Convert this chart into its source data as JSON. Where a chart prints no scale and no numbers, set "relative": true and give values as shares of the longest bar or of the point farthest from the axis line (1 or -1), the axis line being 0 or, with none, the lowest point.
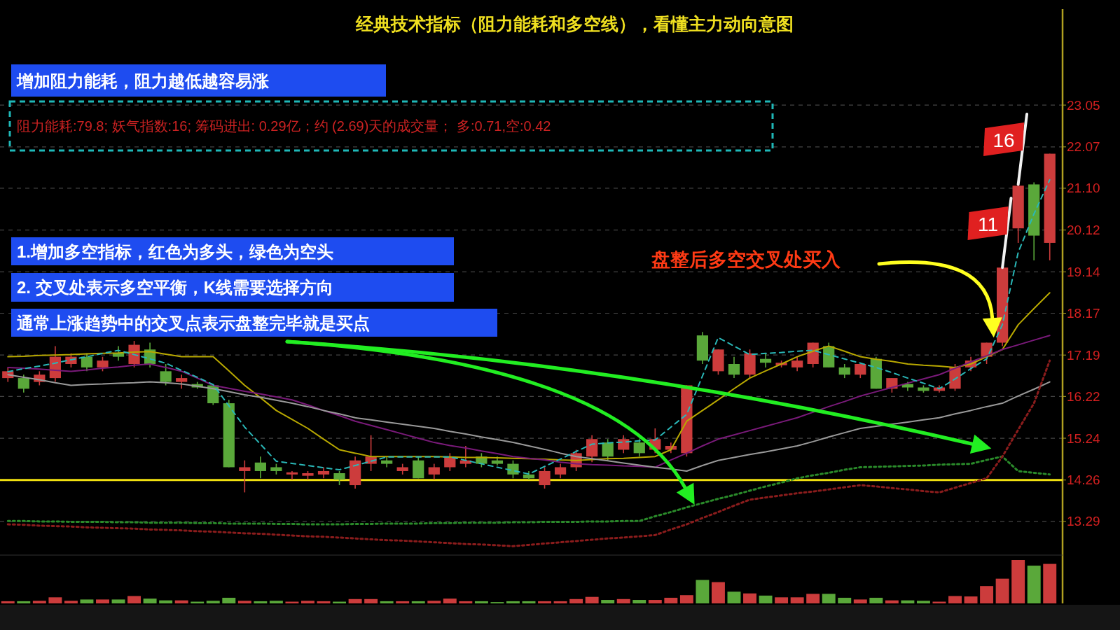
{
  "chart_data": [
    {
      "type": "candlestick",
      "title": "经典技术指标（阻力能耗和多空线），看懂主力动向意图",
      "categories": [
        null,
        null,
        null,
        null,
        null,
        null,
        null,
        null,
        null,
        null,
        null,
        null,
        null,
        null,
        null,
        null,
        null,
        null,
        null,
        null,
        null,
        null,
        null,
        null,
        null,
        null,
        null,
        null,
        null,
        null,
        null,
        null,
        null,
        null,
        null,
        null,
        null,
        null,
        null,
        null,
        null,
        null,
        null,
        null,
        null,
        null,
        null,
        null,
        null,
        null,
        null,
        null,
        null,
        null,
        null,
        null,
        null,
        null,
        null,
        null,
        null,
        null,
        null,
        null,
        null,
        null,
        null
      ],
      "ohlc": [
        [
          16.65,
          16.9,
          16.56,
          16.81
        ],
        [
          16.65,
          16.73,
          16.31,
          16.4
        ],
        [
          16.56,
          16.81,
          16.48,
          16.73
        ],
        [
          16.65,
          17.4,
          16.56,
          17.15
        ],
        [
          16.98,
          17.23,
          16.9,
          17.15
        ],
        [
          17.15,
          17.23,
          16.81,
          16.9
        ],
        [
          16.9,
          17.15,
          16.81,
          17.06
        ],
        [
          17.23,
          17.4,
          17.06,
          17.15
        ],
        [
          16.98,
          17.52,
          16.9,
          17.43
        ],
        [
          17.32,
          17.48,
          16.9,
          16.98
        ],
        [
          16.81,
          16.98,
          16.48,
          16.56
        ],
        [
          16.56,
          16.73,
          16.4,
          16.65
        ],
        [
          16.51,
          16.56,
          16.4,
          16.43
        ],
        [
          16.48,
          16.51,
          16.02,
          16.06
        ],
        [
          16.06,
          16.14,
          14.56,
          14.56
        ],
        [
          14.47,
          14.72,
          13.97,
          14.56
        ],
        [
          14.67,
          14.81,
          14.3,
          14.47
        ],
        [
          14.56,
          14.64,
          14.39,
          14.47
        ],
        [
          14.39,
          14.47,
          14.27,
          14.44
        ],
        [
          14.36,
          14.47,
          14.27,
          14.42
        ],
        [
          14.39,
          14.56,
          14.3,
          14.47
        ],
        [
          14.42,
          14.47,
          14.14,
          14.27
        ],
        [
          14.14,
          14.81,
          14.06,
          14.72
        ],
        [
          14.64,
          15.31,
          14.47,
          14.81
        ],
        [
          14.72,
          14.81,
          14.56,
          14.64
        ],
        [
          14.47,
          14.64,
          14.39,
          14.56
        ],
        [
          14.72,
          14.81,
          14.3,
          14.3
        ],
        [
          14.39,
          14.64,
          14.27,
          14.56
        ],
        [
          14.56,
          14.89,
          14.47,
          14.81
        ],
        [
          14.64,
          15.06,
          14.56,
          14.72
        ],
        [
          14.81,
          14.89,
          14.56,
          14.64
        ],
        [
          14.72,
          14.81,
          14.6,
          14.64
        ],
        [
          14.64,
          14.72,
          14.3,
          14.39
        ],
        [
          14.39,
          14.47,
          14.27,
          14.3
        ],
        [
          14.14,
          14.56,
          14.06,
          14.47
        ],
        [
          14.39,
          14.64,
          14.3,
          14.56
        ],
        [
          14.56,
          14.97,
          14.47,
          14.89
        ],
        [
          14.81,
          15.31,
          14.68,
          15.22
        ],
        [
          15.14,
          15.22,
          14.72,
          14.81
        ],
        [
          14.97,
          15.31,
          14.89,
          15.22
        ],
        [
          15.14,
          15.22,
          14.81,
          14.89
        ],
        [
          14.97,
          15.47,
          14.89,
          15.22
        ],
        [
          14.97,
          15.14,
          14.89,
          15.06
        ],
        [
          14.89,
          16.48,
          14.81,
          16.48
        ],
        [
          17.65,
          17.73,
          16.98,
          17.06
        ],
        [
          16.81,
          17.32,
          16.73,
          17.32
        ],
        [
          16.98,
          17.15,
          16.65,
          16.73
        ],
        [
          16.73,
          17.32,
          16.65,
          17.23
        ],
        [
          17.1,
          17.23,
          16.9,
          17.01
        ],
        [
          16.95,
          17.06,
          16.9,
          17.01
        ],
        [
          16.9,
          17.15,
          16.81,
          17.06
        ],
        [
          16.98,
          17.48,
          16.9,
          17.48
        ],
        [
          17.4,
          17.48,
          16.9,
          16.9
        ],
        [
          16.9,
          16.98,
          16.65,
          16.73
        ],
        [
          16.73,
          16.98,
          16.65,
          16.98
        ],
        [
          17.1,
          17.15,
          16.4,
          16.4
        ],
        [
          16.4,
          16.65,
          16.31,
          16.65
        ],
        [
          16.51,
          16.56,
          16.35,
          16.43
        ],
        [
          16.43,
          16.48,
          16.31,
          16.35
        ],
        [
          16.35,
          16.48,
          16.31,
          16.43
        ],
        [
          16.4,
          16.98,
          16.35,
          16.9
        ],
        [
          16.9,
          17.15,
          16.81,
          17.06
        ],
        [
          17.15,
          17.48,
          16.98,
          17.48
        ],
        [
          17.48,
          19.24,
          17.4,
          19.24
        ],
        [
          20.16,
          21.19,
          19.82,
          21.16
        ],
        [
          21.19,
          21.24,
          19.41,
          19.99
        ],
        [
          19.82,
          21.91,
          19.41,
          21.91
        ]
      ],
      "colors": [
        "#cc3c3c",
        "#5aa83a",
        "#cc3c3c",
        "#cc3c3c",
        "#cc3c3c",
        "#5aa83a",
        "#cc3c3c",
        "#5aa83a",
        "#cc3c3c",
        "#5aa83a",
        "#5aa83a",
        "#cc3c3c",
        "#5aa83a",
        "#5aa83a",
        "#5aa83a",
        "#cc3c3c",
        "#5aa83a",
        "#5aa83a",
        "#cc3c3c",
        "#cc3c3c",
        "#cc3c3c",
        "#5aa83a",
        "#cc3c3c",
        "#cc3c3c",
        "#5aa83a",
        "#cc3c3c",
        "#5aa83a",
        "#cc3c3c",
        "#cc3c3c",
        "#cc3c3c",
        "#5aa83a",
        "#5aa83a",
        "#5aa83a",
        "#5aa83a",
        "#cc3c3c",
        "#cc3c3c",
        "#cc3c3c",
        "#cc3c3c",
        "#5aa83a",
        "#cc3c3c",
        "#5aa83a",
        "#cc3c3c",
        "#cc3c3c",
        "#cc3c3c",
        "#5aa83a",
        "#cc3c3c",
        "#5aa83a",
        "#cc3c3c",
        "#5aa83a",
        "#cc3c3c",
        "#cc3c3c",
        "#cc3c3c",
        "#5aa83a",
        "#5aa83a",
        "#cc3c3c",
        "#5aa83a",
        "#cc3c3c",
        "#5aa83a",
        "#5aa83a",
        "#cc3c3c",
        "#cc3c3c",
        "#cc3c3c",
        "#cc3c3c",
        "#cc3c3c",
        "#cc3c3c",
        "#5aa83a",
        "#cc3c3c"
      ],
      "ylim": [
        12.5,
        25.3
      ],
      "yticks": [
        23.05,
        22.07,
        {
          "value": 21.1,
          "label": "21.10"
        },
        20.12,
        19.14,
        18.17,
        17.19,
        16.22,
        15.24,
        14.26,
        13.29
      ],
      "grid": "y",
      "ref_lines": [
        {
          "axis": "y",
          "value": 14.26,
          "color": "#f0e010"
        }
      ],
      "series": [
        {
          "type": "line",
          "color": "#b8a800",
          "values": [
            17.15,
            17.16,
            17.18,
            17.19,
            17.2,
            17.22,
            17.23,
            17.24,
            17.26,
            17.27,
            17.21,
            17.15,
            17.15,
            17.15,
            16.82,
            16.48,
            16.19,
            15.89,
            15.68,
            15.47,
            15.22,
            14.97,
            14.89,
            14.81,
            14.81,
            14.81,
            14.81,
            14.81,
            14.8,
            14.79,
            14.79,
            14.78,
            14.77,
            14.76,
            14.75,
            14.73,
            14.72,
            14.74,
            14.76,
            14.77,
            14.79,
            14.81,
            14.97,
            15.64,
            15.89,
            16.14,
            16.4,
            16.65,
            16.82,
            16.98,
            17.15,
            17.28,
            17.4,
            17.28,
            17.15,
            17.09,
            17.04,
            16.98,
            16.95,
            16.93,
            16.9,
            16.98,
            17.15,
            17.32,
            17.9,
            18.28,
            18.65
          ]
        },
        {
          "type": "line",
          "color": "#7a1a7a",
          "values": [
            16.9,
            16.88,
            16.86,
            16.83,
            16.81,
            16.84,
            16.88,
            16.91,
            16.95,
            16.98,
            16.9,
            16.81,
            16.65,
            16.48,
            16.41,
            16.34,
            16.28,
            16.21,
            16.14,
            16.02,
            15.89,
            15.77,
            15.64,
            15.54,
            15.44,
            15.34,
            15.24,
            15.14,
            15.07,
            15.01,
            14.94,
            14.88,
            14.81,
            14.77,
            14.73,
            14.68,
            14.64,
            14.62,
            14.61,
            14.59,
            14.58,
            14.56,
            14.73,
            14.89,
            15.06,
            15.22,
            15.32,
            15.42,
            15.52,
            15.62,
            15.72,
            15.85,
            15.98,
            16.1,
            16.23,
            16.33,
            16.43,
            16.53,
            16.63,
            16.73,
            16.88,
            17.03,
            17.17,
            17.32,
            17.43,
            17.54,
            17.65
          ]
        },
        {
          "type": "line",
          "color": "#9a9a9a",
          "values": [
            16.73,
            16.67,
            16.61,
            16.54,
            16.48,
            16.5,
            16.51,
            16.53,
            16.54,
            16.56,
            16.54,
            16.51,
            16.46,
            16.4,
            16.33,
            16.26,
            16.2,
            16.13,
            16.06,
            15.98,
            15.89,
            15.81,
            15.72,
            15.67,
            15.62,
            15.57,
            15.52,
            15.47,
            15.4,
            15.34,
            15.27,
            15.21,
            15.14,
            15.06,
            14.98,
            14.89,
            14.81,
            14.76,
            14.71,
            14.66,
            14.61,
            14.56,
            14.52,
            14.47,
            14.6,
            14.72,
            14.79,
            14.86,
            14.92,
            14.99,
            15.06,
            15.16,
            15.27,
            15.37,
            15.47,
            15.52,
            15.57,
            15.62,
            15.67,
            15.72,
            15.81,
            15.89,
            15.98,
            16.06,
            16.23,
            16.39,
            16.56
          ]
        },
        {
          "type": "line",
          "line_style": "dashed",
          "color": "#2ab8b8",
          "values": [
            16.8,
            16.87,
            16.93,
            17.0,
            17.08,
            17.15,
            17.23,
            17.3,
            17.2,
            17.1,
            17.0,
            16.83,
            16.67,
            16.5,
            16.0,
            15.5,
            15.1,
            14.7,
            14.65,
            14.6,
            14.55,
            14.5,
            14.6,
            14.7,
            14.8,
            14.8,
            14.8,
            14.8,
            14.8,
            14.72,
            14.64,
            14.56,
            14.48,
            14.4,
            14.58,
            14.75,
            14.93,
            15.1,
            15.13,
            15.15,
            15.18,
            15.2,
            15.5,
            15.8,
            16.7,
            17.6,
            17.4,
            17.2,
            17.23,
            17.25,
            17.28,
            17.3,
            17.2,
            17.1,
            17.0,
            16.9,
            16.78,
            16.65,
            16.53,
            16.4,
            16.63,
            16.87,
            17.1,
            17.9,
            19.6,
            20.5,
            21.3
          ]
        },
        {
          "type": "line",
          "line_style": "dotted",
          "color": "#2a8a2a",
          "values": [
            13.3,
            13.3,
            13.29,
            13.29,
            13.28,
            13.28,
            13.28,
            13.27,
            13.27,
            13.26,
            13.26,
            13.26,
            13.25,
            13.25,
            13.24,
            13.24,
            13.24,
            13.23,
            13.23,
            13.22,
            13.22,
            13.22,
            13.23,
            13.23,
            13.24,
            13.24,
            13.24,
            13.25,
            13.25,
            13.26,
            13.26,
            13.26,
            13.27,
            13.27,
            13.28,
            13.28,
            13.28,
            13.29,
            13.29,
            13.3,
            13.3,
            13.41,
            13.51,
            13.62,
            13.72,
            13.82,
            13.91,
            14.01,
            14.11,
            14.2,
            14.3,
            14.37,
            14.43,
            14.5,
            14.56,
            14.57,
            14.58,
            14.59,
            14.6,
            14.62,
            14.63,
            14.64,
            14.73,
            14.81,
            14.47,
            14.43,
            14.39
          ]
        },
        {
          "type": "line",
          "line_style": "dotted",
          "color": "#8a1c1c",
          "values": [
            13.22,
            13.21,
            13.19,
            13.18,
            13.17,
            13.15,
            13.14,
            13.13,
            13.12,
            13.1,
            13.09,
            13.08,
            13.06,
            13.05,
            13.03,
            13.01,
            13.0,
            12.98,
            12.96,
            12.94,
            12.93,
            12.91,
            12.89,
            12.87,
            12.85,
            12.84,
            12.82,
            12.8,
            12.78,
            12.76,
            12.75,
            12.73,
            12.71,
            12.74,
            12.77,
            12.8,
            12.83,
            12.86,
            12.89,
            12.91,
            12.94,
            12.97,
            13.1,
            13.22,
            13.37,
            13.51,
            13.66,
            13.8,
            13.85,
            13.9,
            13.95,
            13.99,
            14.04,
            14.09,
            14.14,
            14.11,
            14.07,
            14.04,
            14.0,
            13.97,
            14.08,
            14.19,
            14.3,
            14.81,
            15.44,
            16.06,
            17.06
          ]
        }
      ],
      "annotations": [
        "增加阻力能耗，阻力越低越容易涨",
        "阻力能耗:79.8; 妖气指数:16; 筹码进出: 0.29亿；约 (2.69)天的成交量； 多:0.71,空:0.42",
        "1.增加多空指标，红色为多头，绿色为空头",
        "2. 交叉处表示多空平衡，K线需要选择方向",
        "通常上涨趋势中的交叉点表示盘整完毕就是买点",
        "盘整后多空交叉处买入",
        "16",
        "11"
      ]
    },
    {
      "type": "bar",
      "relative": true,
      "categories": [
        null,
        null,
        null,
        null,
        null,
        null,
        null,
        null,
        null,
        null,
        null,
        null,
        null,
        null,
        null,
        null,
        null,
        null,
        null,
        null,
        null,
        null,
        null,
        null,
        null,
        null,
        null,
        null,
        null,
        null,
        null,
        null,
        null,
        null,
        null,
        null,
        null,
        null,
        null,
        null,
        null,
        null,
        null,
        null,
        null,
        null,
        null,
        null,
        null,
        null,
        null,
        null,
        null,
        null,
        null,
        null,
        null,
        null,
        null,
        null,
        null,
        null,
        null,
        null,
        null,
        null,
        null
      ],
      "values": [
        0.05,
        0.05,
        0.06,
        0.14,
        0.06,
        0.09,
        0.09,
        0.09,
        0.17,
        0.11,
        0.07,
        0.07,
        0.04,
        0.06,
        0.13,
        0.06,
        0.05,
        0.06,
        0.04,
        0.06,
        0.05,
        0.04,
        0.1,
        0.1,
        0.05,
        0.05,
        0.05,
        0.06,
        0.11,
        0.05,
        0.05,
        0.03,
        0.05,
        0.05,
        0.05,
        0.05,
        0.1,
        0.15,
        0.08,
        0.1,
        0.08,
        0.08,
        0.13,
        0.19,
        0.54,
        0.49,
        0.27,
        0.23,
        0.18,
        0.14,
        0.14,
        0.22,
        0.22,
        0.13,
        0.09,
        0.13,
        0.07,
        0.07,
        0.06,
        0.04,
        0.17,
        0.16,
        0.4,
        0.57,
        1,
        0.87,
        0.91
      ],
      "colors": [
        "#cc3c3c",
        "#5aa83a",
        "#cc3c3c",
        "#cc3c3c",
        "#cc3c3c",
        "#5aa83a",
        "#cc3c3c",
        "#5aa83a",
        "#cc3c3c",
        "#5aa83a",
        "#5aa83a",
        "#cc3c3c",
        "#5aa83a",
        "#5aa83a",
        "#5aa83a",
        "#cc3c3c",
        "#5aa83a",
        "#5aa83a",
        "#cc3c3c",
        "#cc3c3c",
        "#cc3c3c",
        "#5aa83a",
        "#cc3c3c",
        "#cc3c3c",
        "#5aa83a",
        "#cc3c3c",
        "#5aa83a",
        "#cc3c3c",
        "#cc3c3c",
        "#cc3c3c",
        "#5aa83a",
        "#5aa83a",
        "#5aa83a",
        "#5aa83a",
        "#cc3c3c",
        "#cc3c3c",
        "#cc3c3c",
        "#cc3c3c",
        "#5aa83a",
        "#cc3c3c",
        "#5aa83a",
        "#cc3c3c",
        "#cc3c3c",
        "#cc3c3c",
        "#5aa83a",
        "#cc3c3c",
        "#5aa83a",
        "#cc3c3c",
        "#5aa83a",
        "#cc3c3c",
        "#cc3c3c",
        "#cc3c3c",
        "#5aa83a",
        "#5aa83a",
        "#cc3c3c",
        "#5aa83a",
        "#cc3c3c",
        "#5aa83a",
        "#5aa83a",
        "#cc3c3c",
        "#cc3c3c",
        "#cc3c3c",
        "#cc3c3c",
        "#cc3c3c",
        "#cc3c3c",
        "#5aa83a",
        "#cc3c3c"
      ]
    }
  ]
}
